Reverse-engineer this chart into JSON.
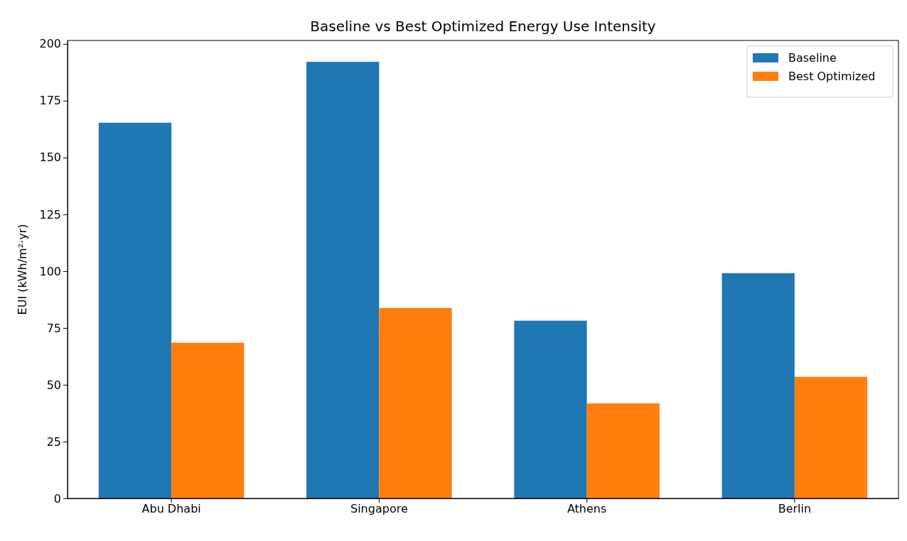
{
  "chart_data": {
    "type": "bar",
    "title": "Baseline vs Best Optimized Energy Use Intensity",
    "ylabel": "EUI (kWh/m²·yr)",
    "categories": [
      "Abu Dhabi",
      "Singapore",
      "Athens",
      "Berlin"
    ],
    "series": [
      {
        "name": "Baseline",
        "color": "#1f77b4",
        "values": [
          165.3,
          192.1,
          78.2,
          99.1
        ]
      },
      {
        "name": "Best Optimized",
        "color": "#ff7f0e",
        "values": [
          68.5,
          83.8,
          41.8,
          53.5
        ]
      }
    ],
    "ylim": [
      0,
      201.5
    ],
    "yticks": [
      0,
      25,
      50,
      75,
      100,
      125,
      150,
      175,
      200
    ],
    "grid": false,
    "legend": "top right"
  }
}
